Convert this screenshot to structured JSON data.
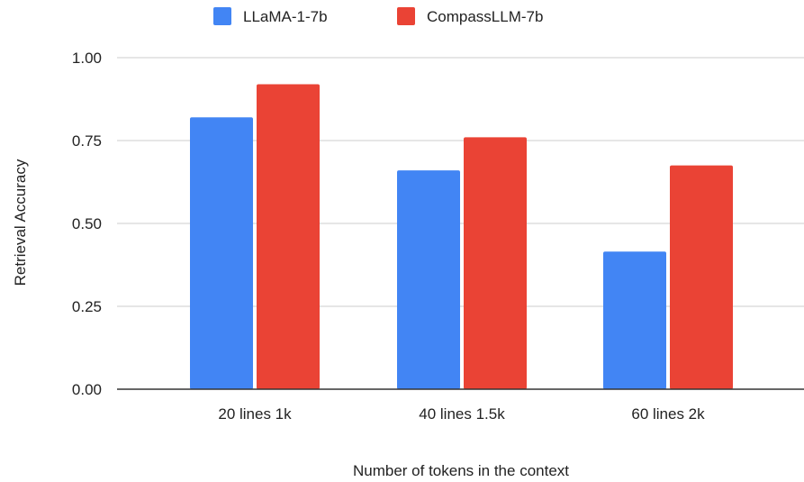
{
  "chart_data": {
    "type": "bar",
    "title": "",
    "xlabel": "Number of tokens in the context",
    "ylabel": "Retrieval Accuracy",
    "categories": [
      "20 lines 1k",
      "40 lines 1.5k",
      "60 lines 2k"
    ],
    "series": [
      {
        "name": "LLaMA-1-7b",
        "values": [
          0.82,
          0.66,
          0.415
        ],
        "color": "#4285f4"
      },
      {
        "name": "CompassLLM-7b",
        "values": [
          0.92,
          0.76,
          0.675
        ],
        "color": "#ea4335"
      }
    ],
    "ylim": [
      0,
      1
    ],
    "yticks": [
      0,
      0.25,
      0.5,
      0.75,
      1
    ],
    "ytick_labels": [
      "0.00",
      "0.25",
      "0.50",
      "0.75",
      "1.00"
    ],
    "grid": true,
    "legend_position": "top-center"
  }
}
